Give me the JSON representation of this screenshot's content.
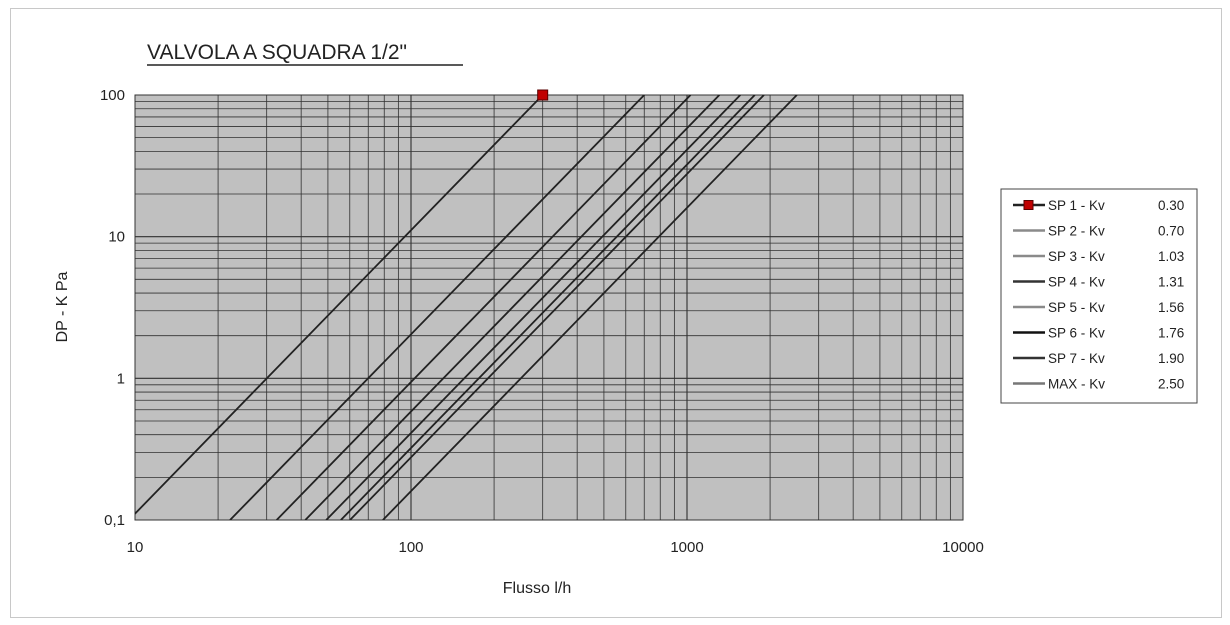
{
  "chart_data": {
    "type": "line",
    "title": "VALVOLA A SQUADRA 1/2\"",
    "xlabel": "Flusso l/h",
    "ylabel": "DP - K Pa",
    "x_scale": "log",
    "y_scale": "log",
    "xlim": [
      10,
      10000
    ],
    "ylim": [
      0.1,
      100
    ],
    "x_ticks": [
      "10",
      "100",
      "1000",
      "10000"
    ],
    "y_ticks": [
      "0,1",
      "1",
      "10",
      "100"
    ],
    "grid": true,
    "legend_position": "right",
    "series": [
      {
        "name": "SP 1 - Kv  0.30",
        "label": "SP 1 - Kv",
        "kv": "0.30",
        "color": "#222222",
        "marker": "square",
        "marker_color": "#c00000",
        "x": [
          9.5,
          300
        ],
        "y": [
          0.1,
          100
        ]
      },
      {
        "name": "SP 2 - Kv  0.70",
        "label": "SP 2 - Kv",
        "kv": "0.70",
        "color": "#222222",
        "x": [
          22.1,
          700
        ],
        "y": [
          0.1,
          100
        ]
      },
      {
        "name": "SP 3 - Kv  1.03",
        "label": "SP 3 - Kv",
        "kv": "1.03",
        "color": "#222222",
        "x": [
          32.6,
          1030
        ],
        "y": [
          0.1,
          100
        ]
      },
      {
        "name": "SP 4 - Kv  1.31",
        "label": "SP 4 - Kv",
        "kv": "1.31",
        "color": "#222222",
        "x": [
          41.4,
          1310
        ],
        "y": [
          0.1,
          100
        ]
      },
      {
        "name": "SP 5 - Kv  1.56",
        "label": "SP 5 - Kv",
        "kv": "1.56",
        "color": "#222222",
        "x": [
          49.3,
          1560
        ],
        "y": [
          0.1,
          100
        ]
      },
      {
        "name": "SP 6 - Kv  1.76",
        "label": "SP 6 - Kv",
        "kv": "1.76",
        "color": "#222222",
        "x": [
          55.7,
          1760
        ],
        "y": [
          0.1,
          100
        ]
      },
      {
        "name": "SP 7 - Kv  1.90",
        "label": "SP 7 - Kv",
        "kv": "1.90",
        "color": "#222222",
        "x": [
          60.1,
          1900
        ],
        "y": [
          0.1,
          100
        ]
      },
      {
        "name": "MAX - Kv  2.50",
        "label": "MAX - Kv",
        "kv": "2.50",
        "color": "#222222",
        "x": [
          79.1,
          2500
        ],
        "y": [
          0.1,
          100
        ]
      }
    ],
    "legend_swatch_colors": [
      "#222222",
      "#8a8a8a",
      "#8a8a8a",
      "#333333",
      "#8a8a8a",
      "#111111",
      "#333333",
      "#777777"
    ],
    "plot_background": "#c0c0c0"
  }
}
